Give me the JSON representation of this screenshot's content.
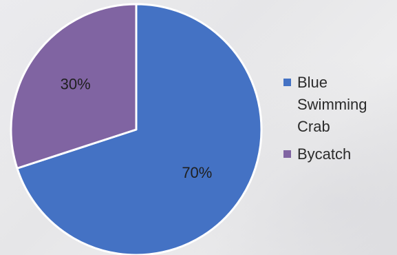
{
  "colors": {
    "blue": "#4472C4",
    "purple": "#8064A2"
  },
  "chart_data": {
    "type": "pie",
    "categories": [
      "Blue Swimming Crab",
      "Bycatch"
    ],
    "values": [
      70,
      30
    ],
    "data_labels": [
      "70%",
      "30%"
    ],
    "legend_position": "right",
    "start_angle_deg": 0,
    "direction": "clockwise",
    "series": [
      {
        "values": [
          70,
          30
        ]
      }
    ]
  },
  "legend": {
    "items": [
      {
        "label": "Blue Swimming Crab",
        "color": "#4472C4"
      },
      {
        "label": "Bycatch",
        "color": "#8064A2"
      }
    ]
  }
}
